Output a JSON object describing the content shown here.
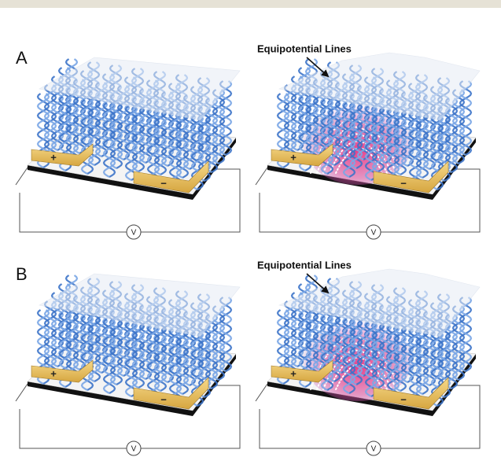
{
  "panels": [
    {
      "label": "A",
      "left": {
        "plus": "+",
        "minus": "−",
        "voltmeter": "V"
      },
      "right": {
        "annotation": "Equipotential Lines",
        "plus": "+",
        "minus": "−",
        "voltmeter": "V"
      }
    },
    {
      "label": "B",
      "left": {
        "plus": "+",
        "minus": "−",
        "voltmeter": "V"
      },
      "right": {
        "annotation": "Equipotential Lines",
        "plus": "+",
        "minus": "−",
        "voltmeter": "V"
      }
    }
  ]
}
